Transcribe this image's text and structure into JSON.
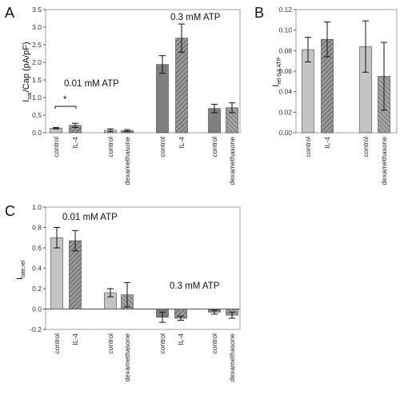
{
  "colors": {
    "control": "#c4c4c4",
    "il4": "#9a9a9a",
    "dex": "#9a9a9a",
    "dark": "#7e7e7e",
    "axis": "#555555"
  },
  "chart_data": [
    {
      "panel": "A",
      "type": "bar",
      "ylabel_main": "I",
      "ylabel_sub": "sat",
      "ylabel_rest": "/Cap (pA/pF)",
      "ylim": [
        0,
        3.5
      ],
      "yticks": [
        "0.0",
        "0.5",
        "1.0",
        "1.5",
        "2.0",
        "2.5",
        "3.0",
        "3.5"
      ],
      "annotations": [
        "0.01 mM ATP",
        "0.3 mM ATP",
        "*"
      ],
      "categories": [
        "control",
        "IL-4",
        "control",
        "dexamethasone",
        "control",
        "IL-4",
        "control",
        "dexamethasone"
      ],
      "values": [
        0.13,
        0.21,
        0.07,
        0.06,
        1.94,
        2.69,
        0.69,
        0.71
      ],
      "errors": [
        0.02,
        0.06,
        0.04,
        0.03,
        0.25,
        0.4,
        0.12,
        0.14
      ],
      "patterns": [
        "control",
        "il4",
        "control",
        "dex",
        "dark",
        "il4",
        "dark",
        "dex"
      ]
    },
    {
      "panel": "B",
      "type": "bar",
      "ylabel_main": "I",
      "ylabel_sub": "rel 0.3 ATP",
      "ylim": [
        0,
        0.12
      ],
      "yticks": [
        "0.00",
        "0.02",
        "0.04",
        "0.06",
        "0.08",
        "0.10",
        "0.12"
      ],
      "categories": [
        "control",
        "IL-4",
        "control",
        "dexamethasone"
      ],
      "values": [
        0.081,
        0.091,
        0.084,
        0.055
      ],
      "errors": [
        0.012,
        0.017,
        0.025,
        0.033
      ],
      "patterns": [
        "control",
        "il4",
        "control",
        "dex"
      ]
    },
    {
      "panel": "C",
      "type": "bar",
      "ylabel_main": "I",
      "ylabel_sub": "late,rel",
      "ylim": [
        -0.2,
        1.0
      ],
      "yticks": [
        "-0.2",
        "0.0",
        "0.2",
        "0.4",
        "0.6",
        "0.8",
        "1.0"
      ],
      "annotations": [
        "0.01 mM ATP",
        "0.3 mM ATP"
      ],
      "categories": [
        "control",
        "IL-4",
        "control",
        "dexamethasone",
        "control",
        "IL-4",
        "control",
        "dexamethasone"
      ],
      "values": [
        0.7,
        0.67,
        0.16,
        0.14,
        -0.08,
        -0.09,
        -0.03,
        -0.06
      ],
      "errors": [
        0.1,
        0.1,
        0.04,
        0.12,
        0.05,
        0.02,
        0.02,
        0.03
      ],
      "patterns": [
        "control",
        "il4",
        "control",
        "dex",
        "dark",
        "il4",
        "dark",
        "dex"
      ]
    }
  ],
  "panel_letters": {
    "a": "A",
    "b": "B",
    "c": "C"
  },
  "annotation_text": {
    "a_low": "0.01 mM ATP",
    "a_high": "0.3 mM ATP",
    "a_star": "*",
    "c_low": "0.01 mM ATP",
    "c_high": "0.3 mM ATP"
  }
}
